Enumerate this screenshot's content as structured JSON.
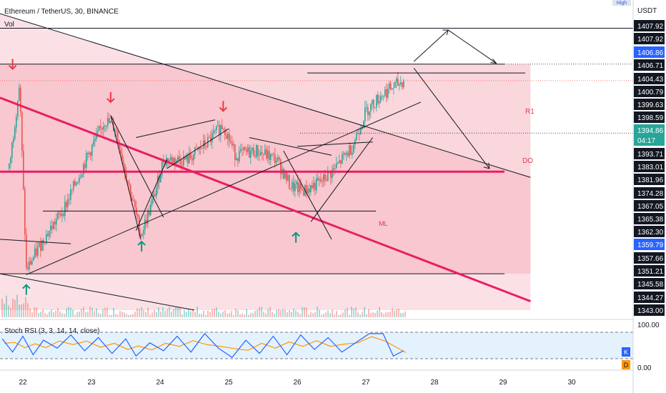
{
  "header": {
    "symbol_line": "Ethereum / TetherUS, 30, BINANCE",
    "volume_label": "Vol",
    "stoch_label": "Stoch RSI (3, 3, 14, 14, close)",
    "corner_tag": "High"
  },
  "price_axis": {
    "currency": "USDT",
    "labels": [
      {
        "text": "1407.92",
        "value": 1407.92,
        "style": "dark"
      },
      {
        "text": "1407.92",
        "value": 1407.92,
        "style": "dark"
      },
      {
        "text": "1406.86",
        "value": 1406.86,
        "style": "blue"
      },
      {
        "text": "1406.71",
        "value": 1406.71,
        "style": "dark"
      },
      {
        "text": "1404.43",
        "value": 1404.43,
        "style": "dark"
      },
      {
        "text": "1400.79",
        "value": 1400.79,
        "style": "dark"
      },
      {
        "text": "1399.63",
        "value": 1399.63,
        "style": "dark"
      },
      {
        "text": "1398.59",
        "value": 1398.59,
        "style": "dark"
      },
      {
        "text": "1394.86",
        "value": 1394.86,
        "style": "green"
      },
      {
        "text": "04:17",
        "value": null,
        "style": "green"
      },
      {
        "text": "1393.71",
        "value": 1393.71,
        "style": "dark"
      },
      {
        "text": "1383.01",
        "value": 1383.01,
        "style": "dark"
      },
      {
        "text": "1381.96",
        "value": 1381.96,
        "style": "dark"
      },
      {
        "text": "1374.28",
        "value": 1374.28,
        "style": "dark"
      },
      {
        "text": "1367.05",
        "value": 1367.05,
        "style": "dark"
      },
      {
        "text": "1365.38",
        "value": 1365.38,
        "style": "dark"
      },
      {
        "text": "1362.30",
        "value": 1362.3,
        "style": "dark"
      },
      {
        "text": "1359.79",
        "value": 1359.79,
        "style": "blue"
      },
      {
        "text": "1357.66",
        "value": 1357.66,
        "style": "dark"
      },
      {
        "text": "1351.21",
        "value": 1351.21,
        "style": "dark"
      },
      {
        "text": "1345.58",
        "value": 1345.58,
        "style": "dark"
      },
      {
        "text": "1344.27",
        "value": 1344.27,
        "style": "dark"
      },
      {
        "text": "1343.00",
        "value": 1343.0,
        "style": "dark"
      }
    ]
  },
  "stoch_axis": {
    "labels": [
      "100.00",
      "0.00"
    ],
    "badges": [
      "K",
      "D"
    ]
  },
  "time_axis": {
    "labels": [
      "22",
      "23",
      "24",
      "25",
      "26",
      "27",
      "28",
      "29",
      "30"
    ]
  },
  "annotations": {
    "r1": "R1",
    "do": "DO",
    "ml": "ML"
  },
  "colors": {
    "bull": "#26a69a",
    "bear": "#ef5350",
    "zone": "#f8c9d0",
    "magenta": "#e91e63",
    "blue_tag": "#2962ff",
    "green_tag": "#26a69a",
    "stoch_k": "#2962ff",
    "stoch_d": "#ff9800",
    "stoch_band": "#e3f2fd"
  },
  "chart_data": {
    "type": "candlestick",
    "symbol": "Ethereum / TetherUS",
    "interval": "30",
    "exchange": "BINANCE",
    "x_unit": "day",
    "y_unit": "USDT",
    "ylim": [
      1343,
      1407.92
    ],
    "last_price": 1394.86,
    "countdown": "04:17",
    "key_levels": {
      "R1": 1398.59,
      "DO": 1383.01,
      "ML": 1365.38,
      "upper_line": 1406.71,
      "lower_line": 1351.21
    },
    "price_path": [
      {
        "x": 21.8,
        "y": 1375
      },
      {
        "x": 21.95,
        "y": 1394
      },
      {
        "x": 22.05,
        "y": 1352
      },
      {
        "x": 22.3,
        "y": 1359
      },
      {
        "x": 22.6,
        "y": 1366
      },
      {
        "x": 22.95,
        "y": 1378
      },
      {
        "x": 23.2,
        "y": 1386
      },
      {
        "x": 23.35,
        "y": 1384
      },
      {
        "x": 23.5,
        "y": 1374
      },
      {
        "x": 23.72,
        "y": 1360
      },
      {
        "x": 23.9,
        "y": 1368
      },
      {
        "x": 24.05,
        "y": 1377
      },
      {
        "x": 24.4,
        "y": 1377
      },
      {
        "x": 24.7,
        "y": 1381
      },
      {
        "x": 24.92,
        "y": 1385
      },
      {
        "x": 25.1,
        "y": 1378
      },
      {
        "x": 25.4,
        "y": 1379
      },
      {
        "x": 25.7,
        "y": 1377
      },
      {
        "x": 25.9,
        "y": 1371
      },
      {
        "x": 26.1,
        "y": 1370
      },
      {
        "x": 26.35,
        "y": 1372
      },
      {
        "x": 26.55,
        "y": 1375
      },
      {
        "x": 26.8,
        "y": 1380
      },
      {
        "x": 27.0,
        "y": 1388
      },
      {
        "x": 27.25,
        "y": 1392
      },
      {
        "x": 27.55,
        "y": 1394.86
      }
    ],
    "stoch_rsi": {
      "params": "3, 3, 14, 14, close",
      "ylim": [
        0,
        100
      ],
      "k_series": [
        {
          "x": 21.7,
          "y": 75
        },
        {
          "x": 21.85,
          "y": 25
        },
        {
          "x": 22.0,
          "y": 85
        },
        {
          "x": 22.15,
          "y": 15
        },
        {
          "x": 22.3,
          "y": 70
        },
        {
          "x": 22.5,
          "y": 40
        },
        {
          "x": 22.7,
          "y": 90
        },
        {
          "x": 22.9,
          "y": 30
        },
        {
          "x": 23.1,
          "y": 80
        },
        {
          "x": 23.3,
          "y": 20
        },
        {
          "x": 23.5,
          "y": 75
        },
        {
          "x": 23.65,
          "y": 10
        },
        {
          "x": 23.85,
          "y": 60
        },
        {
          "x": 24.05,
          "y": 30
        },
        {
          "x": 24.25,
          "y": 85
        },
        {
          "x": 24.45,
          "y": 25
        },
        {
          "x": 24.65,
          "y": 95
        },
        {
          "x": 24.85,
          "y": 40
        },
        {
          "x": 25.05,
          "y": 5
        },
        {
          "x": 25.25,
          "y": 70
        },
        {
          "x": 25.45,
          "y": 20
        },
        {
          "x": 25.65,
          "y": 85
        },
        {
          "x": 25.85,
          "y": 15
        },
        {
          "x": 26.05,
          "y": 90
        },
        {
          "x": 26.25,
          "y": 35
        },
        {
          "x": 26.45,
          "y": 80
        },
        {
          "x": 26.65,
          "y": 25
        },
        {
          "x": 26.85,
          "y": 60
        },
        {
          "x": 27.05,
          "y": 95
        },
        {
          "x": 27.25,
          "y": 95
        },
        {
          "x": 27.4,
          "y": 10
        },
        {
          "x": 27.55,
          "y": 30
        }
      ]
    },
    "drawings": {
      "descending_channel_upper": [
        {
          "x": 21.7,
          "y": 1410
        },
        {
          "x": 29.4,
          "y": 1373
        }
      ],
      "descending_channel_lower": [
        {
          "x": 21.7,
          "y": 1351.21
        },
        {
          "x": 24.5,
          "y": 1343
        }
      ],
      "magenta_trend": [
        {
          "x": 21.7,
          "y": 1391
        },
        {
          "x": 29.4,
          "y": 1345
        }
      ],
      "magenta_horizontal": 1374.28,
      "projection_up": [
        {
          "x": 27.7,
          "y": 1399.2
        },
        {
          "x": 28.2,
          "y": 1406.3
        },
        {
          "x": 28.9,
          "y": 1398.8
        }
      ],
      "projection_down": [
        {
          "x": 27.7,
          "y": 1397.7
        },
        {
          "x": 28.8,
          "y": 1375
        }
      ]
    }
  }
}
